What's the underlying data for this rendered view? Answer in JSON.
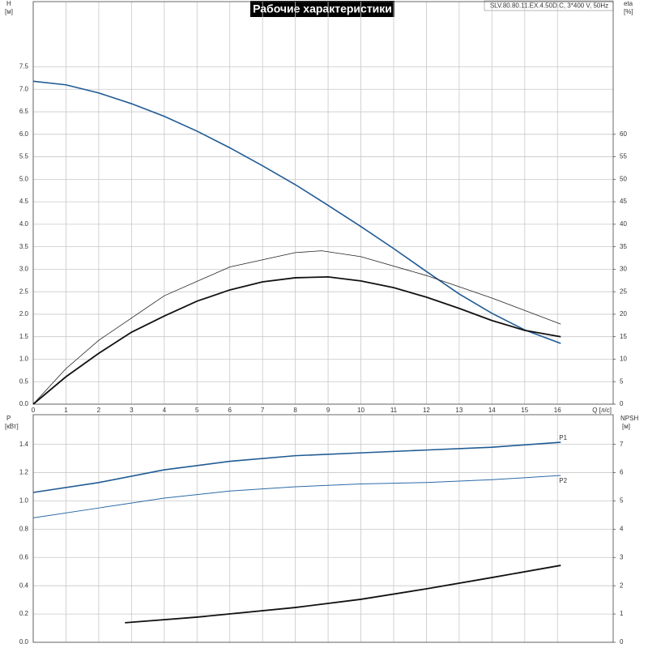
{
  "chart_data": [
    {
      "type": "line",
      "title": "Рабочие характеристики",
      "subtitle": "SLV.80.80.11.EX.4.50D.C, 3*400 V, 50Hz",
      "x_label": "Q [л/с]",
      "y_label": "H",
      "y_unit": "[м]",
      "y2_label": "eta",
      "y2_unit": "[%]",
      "xlim": [
        0,
        17.7
      ],
      "xticks": [
        0,
        1,
        2,
        3,
        4,
        5,
        6,
        7,
        8,
        9,
        10,
        11,
        12,
        13,
        14,
        15,
        16
      ],
      "ylim": [
        0,
        8.95
      ],
      "yticks": [
        {
          "value": 0,
          "label": "0.0"
        },
        0.5,
        {
          "value": 1,
          "label": "1.0"
        },
        1.5,
        {
          "value": 2,
          "label": "2.0"
        },
        2.5,
        {
          "value": 3,
          "label": "3.0"
        },
        3.5,
        {
          "value": 4,
          "label": "4.0"
        },
        4.5,
        {
          "value": 5,
          "label": "5.0"
        },
        5.5,
        {
          "value": 6,
          "label": "6.0"
        },
        6.5,
        {
          "value": 7,
          "label": "7.0"
        },
        7.5
      ],
      "y2lim": [
        0,
        89.5
      ],
      "y2ticks": [
        0,
        5,
        10,
        15,
        20,
        25,
        30,
        35,
        40,
        45,
        50,
        55,
        60
      ],
      "grid": true,
      "show_xtick_labels": true,
      "series": [
        {
          "color": "#1f5a94",
          "x": [
            0,
            1,
            2,
            3,
            4,
            5,
            6,
            7,
            8,
            9,
            10,
            11,
            12,
            13,
            14,
            15,
            16.1
          ],
          "values": [
            7.18,
            7.1,
            6.92,
            6.68,
            6.4,
            6.07,
            5.7,
            5.3,
            4.88,
            4.42,
            3.95,
            3.46,
            2.95,
            2.45,
            2.02,
            1.65,
            1.35
          ]
        },
        {
          "color": "#222222",
          "axis": "y2",
          "x": [
            0,
            1,
            2,
            4,
            6,
            8,
            8.8,
            10,
            12,
            14,
            16.1
          ],
          "values": [
            0,
            7.9,
            14.2,
            24.1,
            30.5,
            33.7,
            34.1,
            32.8,
            28.6,
            23.6,
            17.8
          ]
        },
        {
          "color": "#111111",
          "axis": "y2",
          "x": [
            0,
            1,
            2,
            3,
            4,
            5,
            6,
            7,
            8,
            9,
            10,
            11,
            12,
            13,
            14,
            15,
            16.1
          ],
          "values": [
            0,
            6.1,
            11.3,
            16,
            19.6,
            22.9,
            25.4,
            27.2,
            28.1,
            28.3,
            27.4,
            25.9,
            23.8,
            21.3,
            18.6,
            16.4,
            15
          ]
        }
      ]
    },
    {
      "type": "line",
      "y_label": "P",
      "y_unit": "[кВт]",
      "y2_label": "NPSH",
      "y2_unit": "[м]",
      "xlim": [
        0,
        17.7
      ],
      "xticks": [
        0,
        1,
        2,
        3,
        4,
        5,
        6,
        7,
        8,
        9,
        10,
        11,
        12,
        13,
        14,
        15,
        16
      ],
      "ylim": [
        0,
        1.61
      ],
      "yticks": [
        {
          "value": 0,
          "label": "0.0"
        },
        0.2,
        0.4,
        0.6,
        0.8,
        {
          "value": 1,
          "label": "1.0"
        },
        1.2,
        1.4
      ],
      "y2lim": [
        0,
        8.05
      ],
      "y2ticks": [
        0,
        1,
        2,
        3,
        4,
        5,
        6,
        7
      ],
      "grid": true,
      "show_xtick_labels": false,
      "series": [
        {
          "name": "P1",
          "color": "#1f5a94",
          "x": [
            0,
            2,
            4,
            6,
            8,
            10,
            12,
            14,
            16.1
          ],
          "values": [
            1.06,
            1.13,
            1.22,
            1.28,
            1.32,
            1.34,
            1.36,
            1.38,
            1.415
          ]
        },
        {
          "name": "P2",
          "color": "#2b6aa6",
          "x": [
            0,
            2,
            4,
            6,
            8,
            10,
            12,
            14,
            16.1
          ],
          "values": [
            0.88,
            0.95,
            1.02,
            1.07,
            1.1,
            1.12,
            1.13,
            1.15,
            1.18
          ]
        },
        {
          "color": "#111111",
          "axis": "y2",
          "x": [
            2.8,
            5,
            8,
            10,
            12,
            14,
            16.1
          ],
          "values": [
            0.69,
            0.89,
            1.23,
            1.52,
            1.89,
            2.29,
            2.72
          ]
        }
      ]
    }
  ]
}
